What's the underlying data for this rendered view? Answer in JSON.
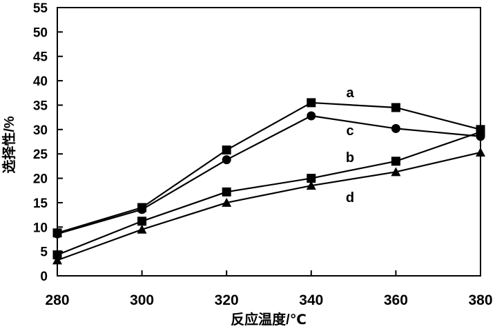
{
  "chart_data": {
    "type": "line",
    "xlabel": "反应温度/℃",
    "ylabel": "选择性/%",
    "x": [
      280,
      300,
      320,
      340,
      360,
      380
    ],
    "xlim": [
      280,
      380
    ],
    "ylim": [
      0,
      55
    ],
    "xticks": [
      "280",
      "300",
      "320",
      "340",
      "360",
      "380"
    ],
    "yticks": [
      "0",
      "5",
      "10",
      "15",
      "20",
      "25",
      "30",
      "35",
      "40",
      "45",
      "50",
      "55"
    ],
    "grid": false,
    "legend": "none",
    "series": [
      {
        "name": "a",
        "marker": "square",
        "values": [
          8.8,
          14.0,
          25.8,
          35.5,
          34.5,
          30.0
        ]
      },
      {
        "name": "c",
        "marker": "circle",
        "values": [
          8.6,
          13.6,
          23.8,
          32.8,
          30.2,
          28.6
        ]
      },
      {
        "name": "b",
        "marker": "square",
        "values": [
          4.3,
          11.2,
          17.2,
          20.0,
          23.5,
          29.5
        ]
      },
      {
        "name": "d",
        "marker": "triangle",
        "values": [
          3.2,
          9.5,
          15.0,
          18.5,
          21.3,
          25.3
        ]
      }
    ],
    "colors": {
      "line": "#000000",
      "marker": "#000000",
      "background": "#ffffff"
    }
  }
}
